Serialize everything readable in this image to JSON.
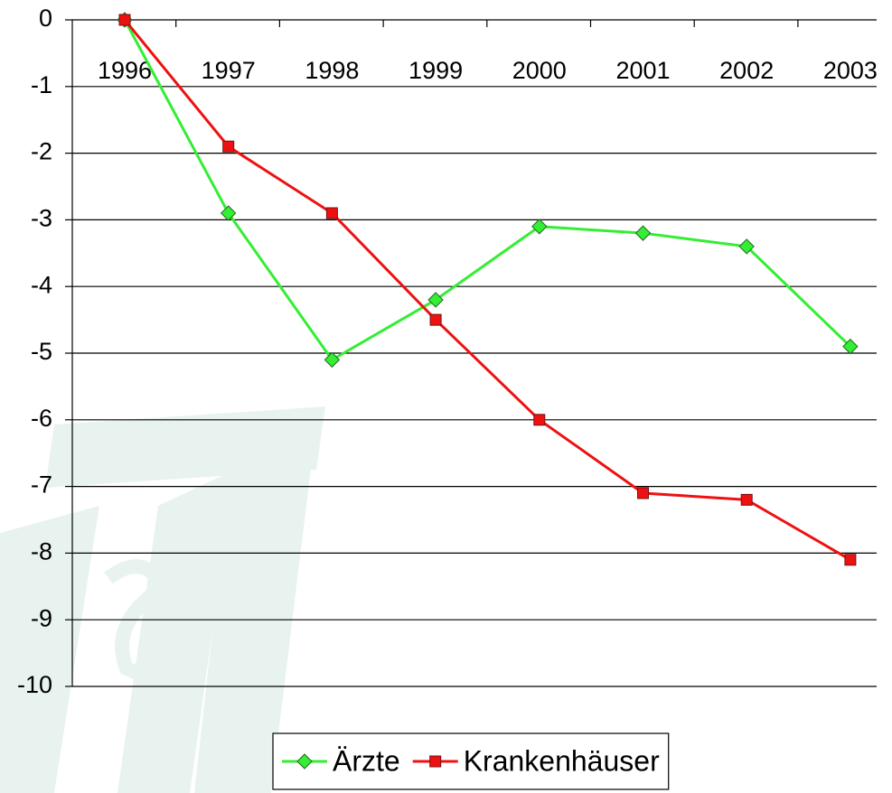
{
  "chart_data": {
    "type": "line",
    "categories": [
      "1996",
      "1997",
      "1998",
      "1999",
      "2000",
      "2001",
      "2002",
      "2003"
    ],
    "series": [
      {
        "name": "Ärzte",
        "color": "#33ee33",
        "marker": "diamond",
        "values": [
          0,
          -2.9,
          -5.1,
          -4.2,
          -3.1,
          -3.2,
          -3.4,
          -4.9
        ]
      },
      {
        "name": "Krankenhäuser",
        "color": "#ee1111",
        "marker": "square",
        "values": [
          0,
          -1.9,
          -2.9,
          -4.5,
          -6.0,
          -7.1,
          -7.2,
          -8.1
        ]
      }
    ],
    "ylim": [
      -10,
      0
    ],
    "yticks": [
      0,
      -1,
      -2,
      -3,
      -4,
      -5,
      -6,
      -7,
      -8,
      -9,
      -10
    ],
    "grid": true,
    "legend": "bottom"
  }
}
